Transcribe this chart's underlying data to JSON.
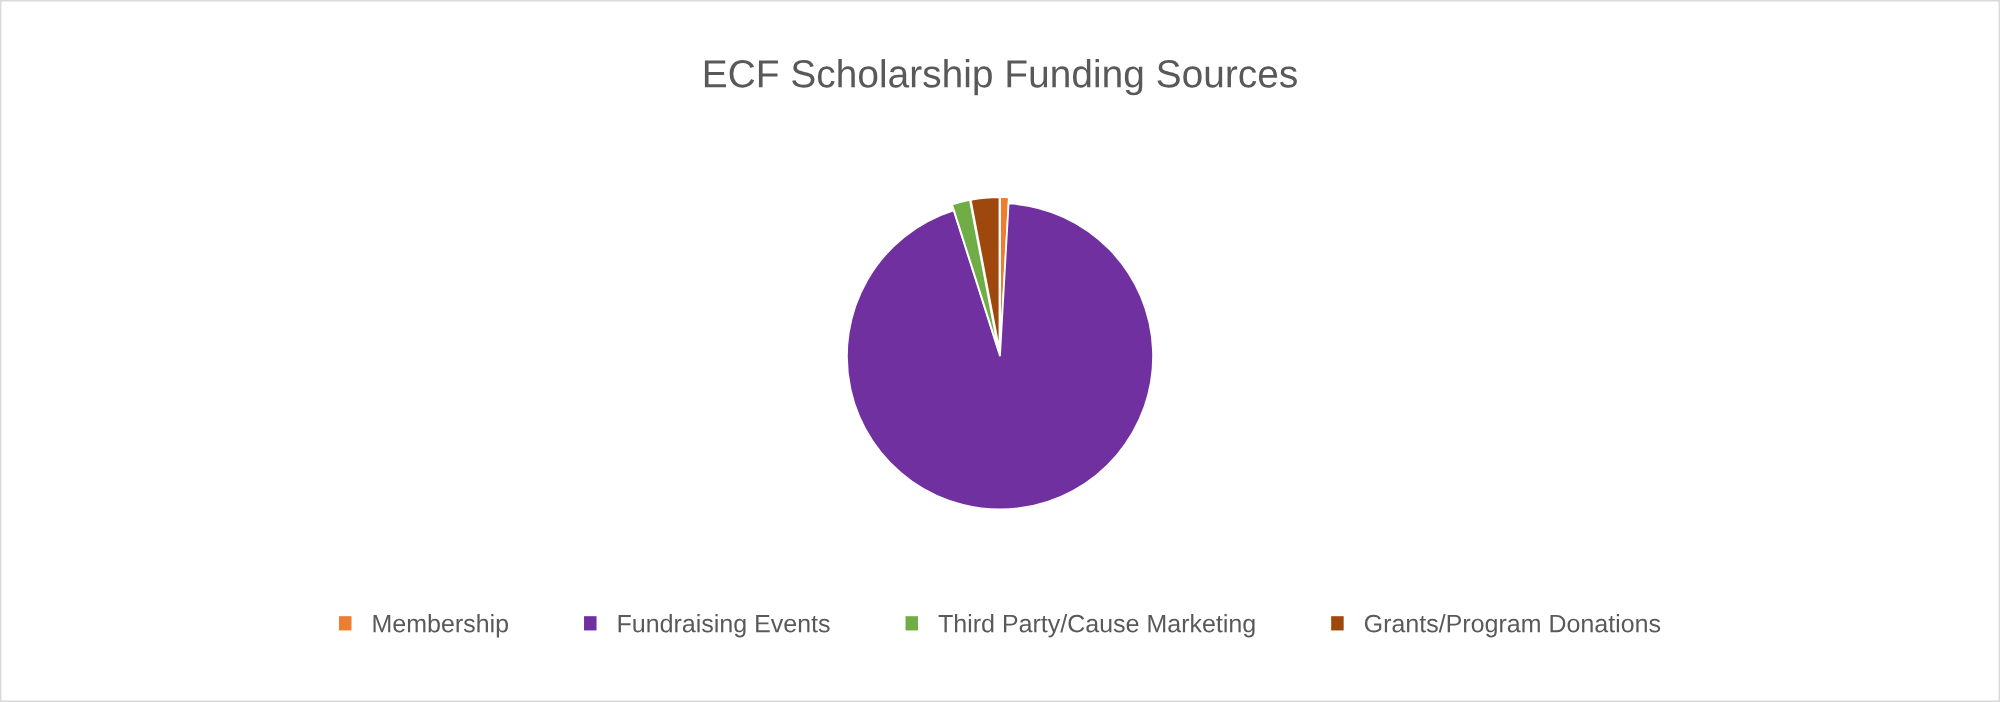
{
  "chart_data": {
    "type": "pie",
    "title": "ECF Scholarship Funding Sources",
    "categories": [
      "Membership",
      "Fundraising Events",
      "Third Party/Cause Marketing",
      "Grants/Program Donations"
    ],
    "values": [
      0.9,
      94.2,
      1.9,
      3.0
    ],
    "colors": [
      "#ed7d31",
      "#7030a0",
      "#70ad47",
      "#9e480e"
    ],
    "legend": "bottom"
  }
}
